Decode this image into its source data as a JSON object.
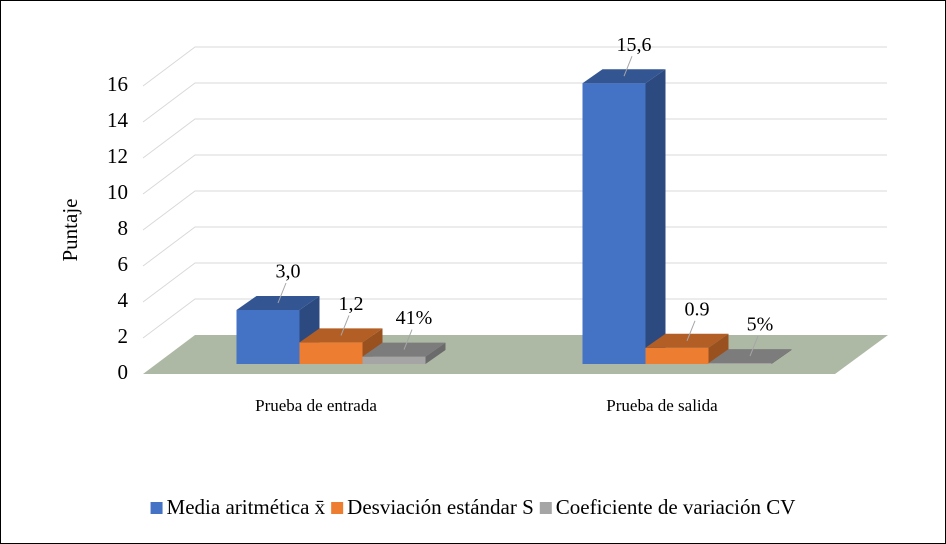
{
  "chart_data": {
    "type": "bar3d",
    "y_label": "Puntaje",
    "categories": [
      "Prueba de entrada",
      "Prueba de salida"
    ],
    "series": [
      {
        "name": "Media aritmética x̄",
        "color": "#4472c4",
        "values": [
          3.0,
          15.6
        ],
        "value_labels": [
          "3,0",
          "15,6"
        ]
      },
      {
        "name": "Desviación estándar S",
        "color": "#ed7d31",
        "values": [
          1.2,
          0.9
        ],
        "value_labels": [
          "1,2",
          "0.9"
        ]
      },
      {
        "name": "Coeficiente de variación CV",
        "color": "#a5a5a5",
        "values": [
          0.41,
          0.05
        ],
        "value_labels": [
          "41%",
          "5%"
        ]
      }
    ],
    "ylim": [
      0,
      16
    ],
    "yticks": [
      0,
      2,
      4,
      6,
      8,
      10,
      12,
      14,
      16
    ],
    "grid": true,
    "legend": "bottom"
  }
}
